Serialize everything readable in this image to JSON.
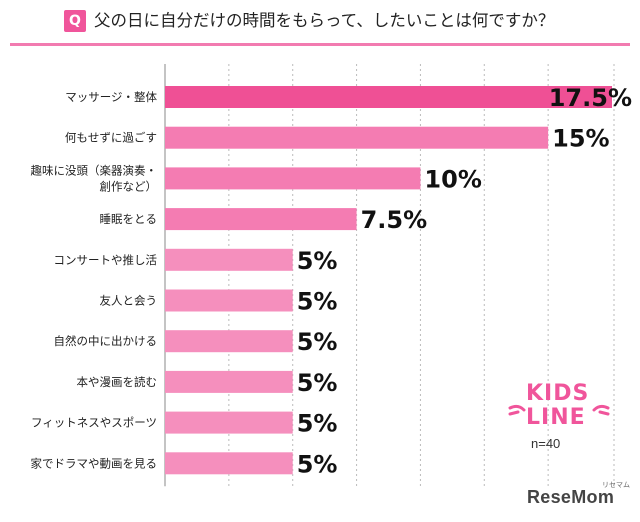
{
  "header": {
    "badge": "Q",
    "question": "父の日に自分だけの時間をもらって、したいことは何ですか？"
  },
  "colors": {
    "accent": "#f0559b",
    "bar_top": "#ef5095",
    "bar": "#f47cb2",
    "bar_light": "#f58fbd",
    "gridline": "#bbbbbb"
  },
  "chart_data": {
    "type": "bar",
    "orientation": "horizontal",
    "categories": [
      [
        "マッサージ・整体"
      ],
      [
        "何もせずに過ごす"
      ],
      [
        "趣味に没頭（楽器演奏・",
        "創作など）"
      ],
      [
        "睡眠をとる"
      ],
      [
        "コンサートや推し活"
      ],
      [
        "友人と会う"
      ],
      [
        "自然の中に出かける"
      ],
      [
        "本や漫画を読む"
      ],
      [
        "フィットネスやスポーツ"
      ],
      [
        "家でドラマや動画を見る"
      ]
    ],
    "values": [
      17.5,
      15,
      10,
      7.5,
      5,
      5,
      5,
      5,
      5,
      5
    ],
    "value_labels": [
      "17.5%",
      "15%",
      "10%",
      "7.5%",
      "5%",
      "5%",
      "5%",
      "5%",
      "5%",
      "5%"
    ],
    "xlim": [
      0,
      17.5
    ],
    "grid": true,
    "grid_style": "dotted"
  },
  "logo": {
    "name": "kids-line-logo",
    "lines": [
      "KIDS",
      "LINE"
    ]
  },
  "sample_size": "n=40",
  "brand": {
    "name_a": "Rese",
    "name_b": "Mom",
    "small": "リセマム"
  }
}
